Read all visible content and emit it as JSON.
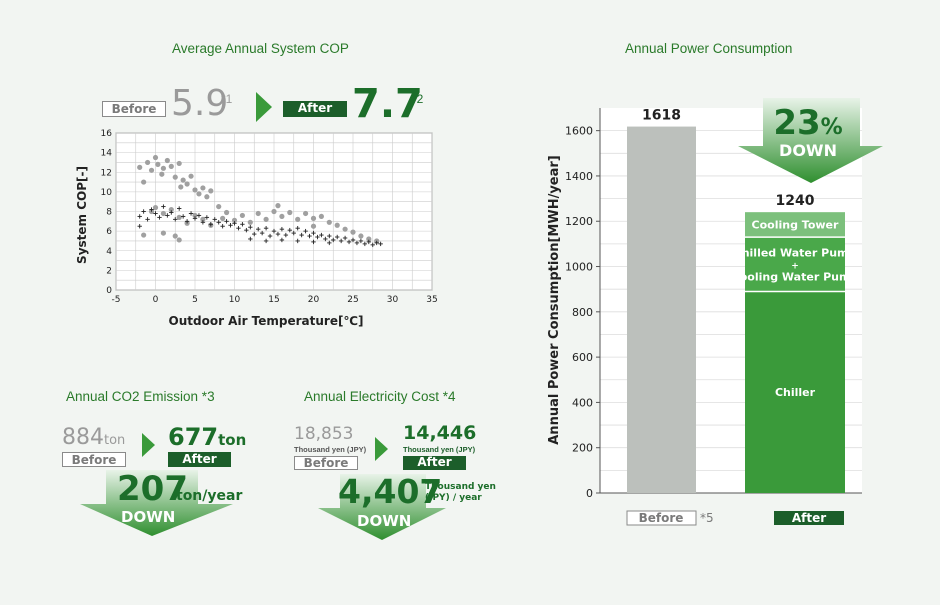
{
  "cop": {
    "heading": "Average Annual System COP",
    "before_label": "Before",
    "before_value": "5.9",
    "before_note": "*1",
    "after_label": "After",
    "after_value": "7.7",
    "after_note": "*2"
  },
  "power": {
    "heading": "Annual Power Consumption",
    "reduction_value": "23",
    "reduction_unit": "%",
    "reduction_label": "DOWN",
    "before_note": "*5"
  },
  "co2": {
    "heading": "Annual CO2 Emission *3",
    "before_value": "884",
    "before_unit": "ton",
    "before_label": "Before",
    "after_value": "677",
    "after_unit": "ton",
    "after_label": "After",
    "down_value": "207",
    "down_unit": "ton/year",
    "down_label": "DOWN"
  },
  "cost": {
    "heading": "Annual Electricity Cost  *4",
    "before_value": "18,853",
    "before_unit": "Thousand yen (JPY)",
    "before_label": "Before",
    "after_value": "14,446",
    "after_unit": "Thousand yen (JPY)",
    "after_label": "After",
    "down_value": "4,407",
    "down_unit_line1": "Thousand yen",
    "down_unit_line2": "(JPY) / year",
    "down_label": "DOWN"
  },
  "colors": {
    "accent_green": "#3a9a3a",
    "dark_green": "#1c5e2a",
    "before_grey": "#a0a0a0",
    "after_marker": "#222222"
  },
  "chart_data": [
    {
      "type": "scatter",
      "xlabel": "Outdoor Air Temperature[℃]",
      "ylabel": "System COP[-]",
      "xlim": [
        -5,
        35
      ],
      "ylim": [
        0,
        16
      ],
      "xticks": [
        "-5",
        "0",
        "5",
        "10",
        "15",
        "20",
        "25",
        "30",
        "35"
      ],
      "yticks": [
        "0",
        "2",
        "4",
        "6",
        "8",
        "10",
        "12",
        "14",
        "16"
      ],
      "grid": true,
      "series": [
        {
          "name": "Before",
          "marker": "circle",
          "color": "#a0a0a0",
          "points": [
            [
              -2,
              12.5
            ],
            [
              -1.5,
              11
            ],
            [
              -1,
              13
            ],
            [
              -0.5,
              12.2
            ],
            [
              0,
              13.5
            ],
            [
              0.3,
              12.8
            ],
            [
              0.8,
              11.8
            ],
            [
              1,
              12.4
            ],
            [
              1.5,
              13.2
            ],
            [
              2,
              12.6
            ],
            [
              2.5,
              11.5
            ],
            [
              3,
              12.9
            ],
            [
              3.2,
              10.5
            ],
            [
              3.5,
              11.2
            ],
            [
              4,
              10.8
            ],
            [
              4.5,
              11.6
            ],
            [
              5,
              10.2
            ],
            [
              5.5,
              9.8
            ],
            [
              6,
              10.4
            ],
            [
              6.5,
              9.5
            ],
            [
              7,
              10.1
            ],
            [
              -0.5,
              8
            ],
            [
              0,
              8.4
            ],
            [
              1,
              7.8
            ],
            [
              2,
              8.2
            ],
            [
              2.5,
              5.5
            ],
            [
              3,
              7.4
            ],
            [
              4,
              6.8
            ],
            [
              5,
              7.6
            ],
            [
              6,
              7.2
            ],
            [
              7,
              6.6
            ],
            [
              8,
              8.5
            ],
            [
              8.5,
              7.3
            ],
            [
              9,
              7.9
            ],
            [
              10,
              7.1
            ],
            [
              11,
              7.6
            ],
            [
              12,
              6.9
            ],
            [
              13,
              7.8
            ],
            [
              14,
              7.2
            ],
            [
              15,
              8
            ],
            [
              16,
              7.5
            ],
            [
              17,
              7.9
            ],
            [
              18,
              7.2
            ],
            [
              19,
              7.8
            ],
            [
              20,
              7.3
            ],
            [
              21,
              7.5
            ],
            [
              22,
              6.9
            ],
            [
              23,
              6.6
            ],
            [
              24,
              6.2
            ],
            [
              25,
              5.9
            ],
            [
              26,
              5.5
            ],
            [
              27,
              5.2
            ],
            [
              28,
              5
            ],
            [
              1,
              5.8
            ],
            [
              3,
              5.1
            ],
            [
              -1.5,
              5.6
            ],
            [
              15.5,
              8.6
            ],
            [
              20,
              6.5
            ]
          ]
        },
        {
          "name": "After",
          "marker": "cross",
          "color": "#222222",
          "points": [
            [
              -2,
              7.5
            ],
            [
              -1.5,
              8
            ],
            [
              -1,
              7.2
            ],
            [
              -0.5,
              8.2
            ],
            [
              0,
              7.8
            ],
            [
              0.5,
              7.4
            ],
            [
              1,
              8.5
            ],
            [
              1.5,
              7.6
            ],
            [
              2,
              7.9
            ],
            [
              2.5,
              7.2
            ],
            [
              3,
              8.3
            ],
            [
              3.5,
              7.5
            ],
            [
              4,
              7
            ],
            [
              4.5,
              7.8
            ],
            [
              5,
              7.3
            ],
            [
              5.5,
              7.6
            ],
            [
              6,
              6.9
            ],
            [
              6.5,
              7.4
            ],
            [
              7,
              6.7
            ],
            [
              7.5,
              7.2
            ],
            [
              8,
              6.9
            ],
            [
              8.5,
              6.5
            ],
            [
              9,
              7
            ],
            [
              9.5,
              6.6
            ],
            [
              10,
              6.8
            ],
            [
              10.5,
              6.3
            ],
            [
              11,
              6.7
            ],
            [
              11.5,
              6.1
            ],
            [
              12,
              6.4
            ],
            [
              12.5,
              5.7
            ],
            [
              13,
              6.2
            ],
            [
              13.5,
              5.8
            ],
            [
              14,
              6.3
            ],
            [
              14.5,
              5.5
            ],
            [
              15,
              6
            ],
            [
              15.5,
              5.7
            ],
            [
              16,
              6.2
            ],
            [
              16.5,
              5.6
            ],
            [
              17,
              6.1
            ],
            [
              17.5,
              5.8
            ],
            [
              18,
              6.3
            ],
            [
              18.5,
              5.6
            ],
            [
              19,
              6
            ],
            [
              19.5,
              5.5
            ],
            [
              20,
              5.8
            ],
            [
              20.5,
              5.4
            ],
            [
              21,
              5.6
            ],
            [
              21.5,
              5.2
            ],
            [
              22,
              5.5
            ],
            [
              22.5,
              5.1
            ],
            [
              23,
              5.4
            ],
            [
              23.5,
              5
            ],
            [
              24,
              5.3
            ],
            [
              24.5,
              4.9
            ],
            [
              25,
              5.1
            ],
            [
              25.5,
              4.8
            ],
            [
              26,
              5
            ],
            [
              26.5,
              4.7
            ],
            [
              27,
              4.9
            ],
            [
              27.5,
              4.6
            ],
            [
              28,
              4.8
            ],
            [
              28.5,
              4.7
            ],
            [
              -2,
              6.5
            ],
            [
              12,
              5.2
            ],
            [
              14,
              5
            ],
            [
              16,
              5.1
            ],
            [
              18,
              5
            ],
            [
              20,
              4.9
            ],
            [
              22,
              4.8
            ]
          ]
        }
      ]
    },
    {
      "type": "bar",
      "ylabel": "Annual Power Consumption[MWH/year]",
      "ylim": [
        0,
        1700
      ],
      "yticks": [
        "0",
        "200",
        "400",
        "600",
        "800",
        "1000",
        "1200",
        "1400",
        "1600"
      ],
      "grid": true,
      "categories": [
        "Before",
        "After"
      ],
      "totals": [
        "1618",
        "1240"
      ],
      "before_value": 1618,
      "after_segments": [
        {
          "name": "Chiller",
          "value": 890,
          "color": "#3a9a3a"
        },
        {
          "name": "Chilled Water Pump\n+\nCooling Water Pump",
          "value": 240,
          "color": "#4aa84a"
        },
        {
          "name": "Cooling Tower",
          "value": 110,
          "color": "#7cc07c"
        }
      ]
    }
  ]
}
